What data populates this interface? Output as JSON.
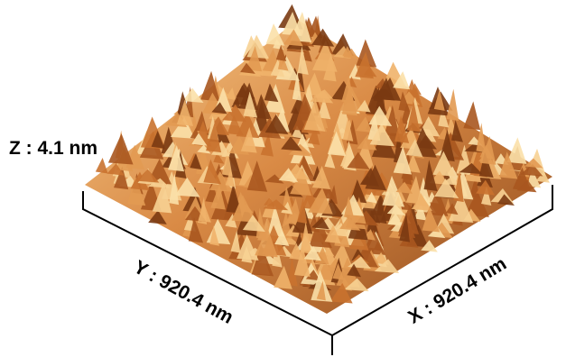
{
  "z_label": "Z : 4.1 nm",
  "y_label": "Y : 920.4 nm",
  "x_label": "X : 920.4 nm"
}
